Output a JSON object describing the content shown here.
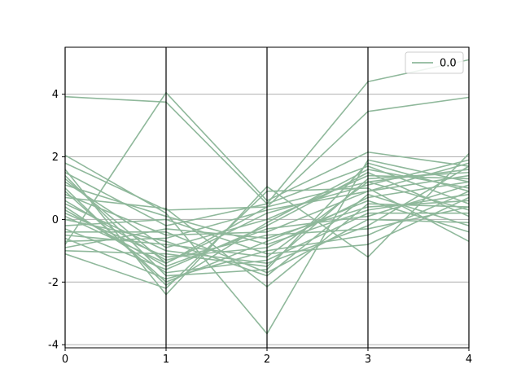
{
  "chart_data": {
    "type": "line",
    "subtype": "parallel-coordinates",
    "title": "",
    "xlabel": "",
    "ylabel": "",
    "x": [
      0,
      1,
      2,
      3,
      4
    ],
    "x_ticks": [
      "0",
      "1",
      "2",
      "3",
      "4"
    ],
    "y_ticks": [
      -4,
      -2,
      0,
      2,
      4
    ],
    "ylim": [
      -4.1,
      5.5
    ],
    "xlim": [
      0,
      4
    ],
    "grid": "horizontal",
    "legend": {
      "placement": "top-right",
      "entries": [
        "0.0"
      ]
    },
    "series_color": "#8fb89b",
    "series": [
      {
        "name": "0.0",
        "values": [
          3.92,
          3.75,
          0.5,
          4.4,
          5.1
        ]
      },
      {
        "name": "0.0",
        "values": [
          1.8,
          0.3,
          0.4,
          3.45,
          3.9
        ]
      },
      {
        "name": "0.0",
        "values": [
          -0.8,
          4.05,
          0.6,
          2.15,
          1.7
        ]
      },
      {
        "name": "0.0",
        "values": [
          2.05,
          0.2,
          -3.65,
          1.9,
          1.2
        ]
      },
      {
        "name": "0.0",
        "values": [
          1.6,
          -2.4,
          1.05,
          -1.2,
          2.1
        ]
      },
      {
        "name": "0.0",
        "values": [
          0.7,
          0.35,
          -2.15,
          0.5,
          0.4
        ]
      },
      {
        "name": "0.0",
        "values": [
          -1.1,
          -2.2,
          0.9,
          1.0,
          -0.7
        ]
      },
      {
        "name": "0.0",
        "values": [
          1.4,
          -1.8,
          -1.6,
          1.8,
          0.9
        ]
      },
      {
        "name": "0.0",
        "values": [
          0.2,
          -1.2,
          -0.9,
          0.7,
          1.2
        ]
      },
      {
        "name": "0.0",
        "values": [
          -0.5,
          -0.8,
          -1.2,
          1.2,
          0.3
        ]
      },
      {
        "name": "0.0",
        "values": [
          0.8,
          -0.5,
          -0.4,
          0.9,
          1.4
        ]
      },
      {
        "name": "0.0",
        "values": [
          1.1,
          0.1,
          -0.8,
          0.3,
          0.8
        ]
      },
      {
        "name": "0.0",
        "values": [
          -0.3,
          -1.6,
          -0.2,
          1.5,
          0.1
        ]
      },
      {
        "name": "0.0",
        "values": [
          0.5,
          -1.0,
          -1.4,
          -0.2,
          1.7
        ]
      },
      {
        "name": "0.0",
        "values": [
          -0.9,
          -0.3,
          -0.6,
          0.4,
          0.6
        ]
      },
      {
        "name": "0.0",
        "values": [
          1.3,
          -1.4,
          0.2,
          1.1,
          1.9
        ]
      },
      {
        "name": "0.0",
        "values": [
          0.0,
          -0.7,
          -1.8,
          0.8,
          -0.2
        ]
      },
      {
        "name": "0.0",
        "values": [
          -0.6,
          -1.9,
          -1.0,
          -0.5,
          0.9
        ]
      },
      {
        "name": "0.0",
        "values": [
          1.5,
          -0.2,
          0.5,
          1.7,
          0.5
        ]
      },
      {
        "name": "0.0",
        "values": [
          0.3,
          -1.5,
          -0.3,
          0.1,
          1.1
        ]
      },
      {
        "name": "0.0",
        "values": [
          -1.0,
          -1.1,
          -1.5,
          1.3,
          1.5
        ]
      },
      {
        "name": "0.0",
        "values": [
          0.9,
          -2.0,
          -0.7,
          0.6,
          -0.4
        ]
      },
      {
        "name": "0.0",
        "values": [
          -0.2,
          0.0,
          -1.1,
          -0.8,
          0.7
        ]
      },
      {
        "name": "0.0",
        "values": [
          1.2,
          -0.9,
          0.0,
          1.4,
          1.3
        ]
      },
      {
        "name": "0.0",
        "values": [
          0.4,
          -1.7,
          -1.3,
          0.2,
          0.2
        ]
      },
      {
        "name": "0.0",
        "values": [
          -0.7,
          -0.6,
          0.3,
          0.9,
          1.8
        ]
      },
      {
        "name": "0.0",
        "values": [
          0.6,
          -1.3,
          -0.5,
          -0.3,
          0.4
        ]
      },
      {
        "name": "0.0",
        "values": [
          1.0,
          -2.1,
          -0.1,
          1.6,
          1.0
        ]
      },
      {
        "name": "0.0",
        "values": [
          -0.4,
          -0.4,
          -1.7,
          0.0,
          -0.1
        ]
      },
      {
        "name": "0.0",
        "values": [
          0.1,
          -1.4,
          0.4,
          1.2,
          1.6
        ]
      }
    ]
  }
}
